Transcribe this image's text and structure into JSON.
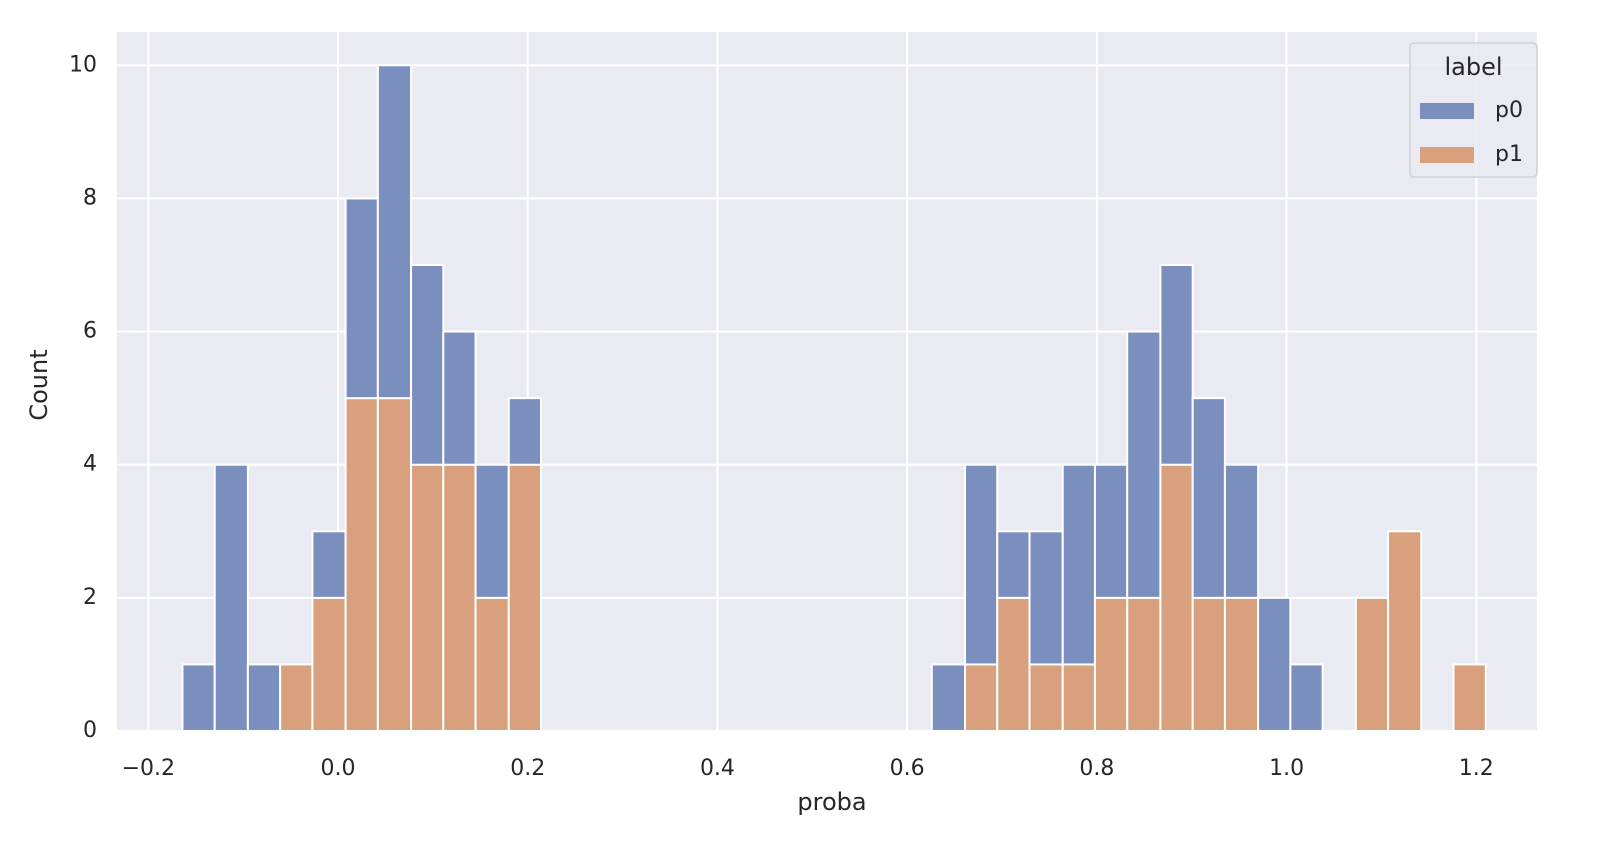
{
  "chart_data": {
    "type": "histogram",
    "multiple": "stack",
    "xlabel": "proba",
    "ylabel": "Count",
    "bins": [
      -0.164,
      -0.13,
      -0.095,
      -0.061,
      -0.027,
      0.008,
      0.042,
      0.077,
      0.111,
      0.145,
      0.18,
      0.214,
      0.248,
      0.283,
      0.317,
      0.351,
      0.386,
      0.42,
      0.454,
      0.489,
      0.523,
      0.558,
      0.592,
      0.626,
      0.661,
      0.695,
      0.729,
      0.764,
      0.798,
      0.832,
      0.867,
      0.901,
      0.935,
      0.97,
      1.004,
      1.038,
      1.073,
      1.107,
      1.142,
      1.176,
      1.21
    ],
    "series": [
      {
        "name": "p0",
        "color": "#7b8fbf",
        "values": [
          1,
          4,
          1,
          0,
          1,
          3,
          5,
          3,
          2,
          2,
          1,
          0,
          0,
          0,
          0,
          0,
          0,
          0,
          0,
          0,
          0,
          0,
          0,
          1,
          3,
          1,
          2,
          3,
          2,
          4,
          3,
          3,
          2,
          2,
          1,
          0,
          0,
          0,
          0,
          0
        ]
      },
      {
        "name": "p1",
        "color": "#d9a07e",
        "values": [
          0,
          0,
          0,
          1,
          2,
          5,
          5,
          4,
          4,
          2,
          4,
          0,
          0,
          0,
          0,
          0,
          0,
          0,
          0,
          0,
          0,
          0,
          0,
          0,
          1,
          2,
          1,
          1,
          2,
          2,
          4,
          2,
          2,
          0,
          0,
          0,
          2,
          3,
          0,
          1
        ]
      }
    ],
    "xlim": [
      -0.233,
      1.264
    ],
    "xticks": [
      {
        "value": -0.2,
        "label": "−0.2"
      },
      {
        "value": 0,
        "label": "0.0"
      },
      0.2,
      0.4,
      0.6,
      0.8,
      {
        "value": 1,
        "label": "1.0"
      },
      1.2
    ],
    "ylim": [
      0,
      10.5
    ],
    "yticks": [
      0,
      2,
      4,
      6,
      8,
      10
    ],
    "grid": true,
    "legend_title": "label",
    "legend_position": "upper right"
  }
}
